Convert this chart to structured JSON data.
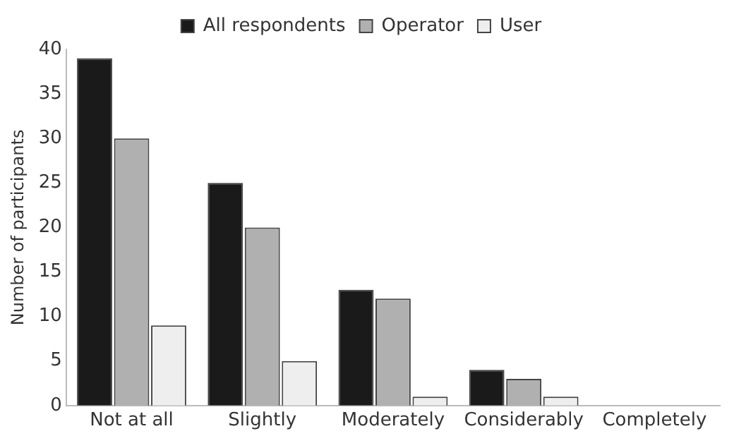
{
  "chart_data": {
    "type": "bar",
    "ylabel": "Number of participants",
    "categories": [
      "Not at all",
      "Slightly",
      "Moderately",
      "Considerably",
      "Completely"
    ],
    "series": [
      {
        "name": "All respondents",
        "color": "#1a1a1a",
        "values": [
          39,
          25,
          13,
          4,
          0
        ]
      },
      {
        "name": "Operator",
        "color": "#b0b0b0",
        "values": [
          30,
          20,
          12,
          3,
          0
        ]
      },
      {
        "name": "User",
        "color": "#eeeeee",
        "values": [
          9,
          5,
          1,
          1,
          0
        ]
      }
    ],
    "ylim": [
      0,
      40
    ],
    "yticks": [
      0,
      5,
      10,
      15,
      20,
      25,
      30,
      35,
      40
    ],
    "grid": false,
    "legend": "top"
  }
}
